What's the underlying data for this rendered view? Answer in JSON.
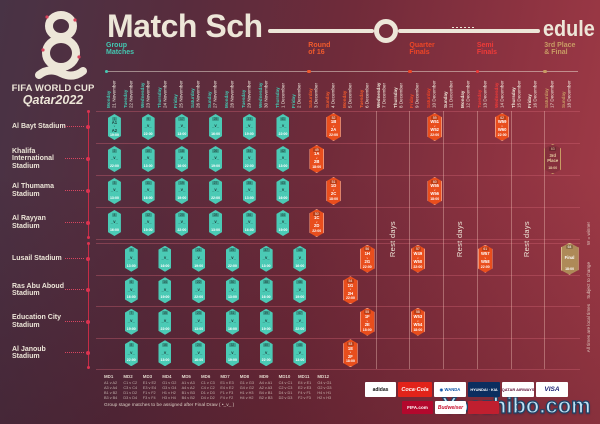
{
  "title": {
    "part1": "Match Sch",
    "part2": "edule"
  },
  "logo": {
    "line1": "FIFA WORLD CUP",
    "line2": "Qatar2022"
  },
  "vs_glyph": "v",
  "colors": {
    "cream": "#EDE6D8",
    "group": "#43C8B2",
    "r16": "#F15A2C",
    "qf": "#EE4526",
    "sf": "#EF3B38",
    "final": "#C89C64",
    "rest": "#EFE8DA",
    "red_accent": "#DC3350",
    "marker_group": "#4BCAB5",
    "marker_knockout": "#E94E1D",
    "marker_gold": "#AE8A58"
  },
  "sections": [
    {
      "id": "group",
      "lines": [
        "Group",
        "Matches"
      ],
      "startCol": 0,
      "endCol": 11,
      "color": "group"
    },
    {
      "id": "r16",
      "lines": [
        "Round",
        "of 16"
      ],
      "startCol": 12,
      "endCol": 15,
      "color": "r16"
    },
    {
      "id": "qf",
      "lines": [
        "Quarter",
        "Finals"
      ],
      "startCol": 18,
      "endCol": 19,
      "color": "qf"
    },
    {
      "id": "sf",
      "lines": [
        "Semi",
        "Finals"
      ],
      "startCol": 22,
      "endCol": 23,
      "color": "sf"
    },
    {
      "id": "final",
      "lines": [
        "3rd Place",
        "& Final"
      ],
      "startCol": 26,
      "endCol": 27,
      "color": "final"
    }
  ],
  "columns": [
    {
      "day": "Monday",
      "date": "21 November",
      "stage": "group"
    },
    {
      "day": "Tuesday",
      "date": "22 November",
      "stage": "group"
    },
    {
      "day": "Wednesday",
      "date": "23 November",
      "stage": "group"
    },
    {
      "day": "Thursday",
      "date": "24 November",
      "stage": "group"
    },
    {
      "day": "Friday",
      "date": "25 November",
      "stage": "group"
    },
    {
      "day": "Saturday",
      "date": "26 November",
      "stage": "group"
    },
    {
      "day": "Sunday",
      "date": "27 November",
      "stage": "group"
    },
    {
      "day": "Monday",
      "date": "28 November",
      "stage": "group"
    },
    {
      "day": "Tuesday",
      "date": "29 November",
      "stage": "group"
    },
    {
      "day": "Wednesday",
      "date": "30 November",
      "stage": "group"
    },
    {
      "day": "Thursday",
      "date": "1 December",
      "stage": "group"
    },
    {
      "day": "Friday",
      "date": "2 December",
      "stage": "group"
    },
    {
      "day": "Saturday",
      "date": "3 December",
      "stage": "r16"
    },
    {
      "day": "Sunday",
      "date": "4 December",
      "stage": "r16"
    },
    {
      "day": "Monday",
      "date": "5 December",
      "stage": "r16"
    },
    {
      "day": "Tuesday",
      "date": "6 December",
      "stage": "r16"
    },
    {
      "day": "Wednesday",
      "date": "7 December",
      "stage": "rest"
    },
    {
      "day": "Thursday",
      "date": "8 December",
      "stage": "rest"
    },
    {
      "day": "Friday",
      "date": "9 December",
      "stage": "qf"
    },
    {
      "day": "Saturday",
      "date": "10 December",
      "stage": "qf"
    },
    {
      "day": "Sunday",
      "date": "11 December",
      "stage": "rest"
    },
    {
      "day": "Monday",
      "date": "12 December",
      "stage": "rest"
    },
    {
      "day": "Tuesday",
      "date": "13 December",
      "stage": "sf"
    },
    {
      "day": "Wednesday",
      "date": "14 December",
      "stage": "sf"
    },
    {
      "day": "Thursday",
      "date": "15 December",
      "stage": "rest"
    },
    {
      "day": "Friday",
      "date": "16 December",
      "stage": "rest"
    },
    {
      "day": "Saturday",
      "date": "17 December",
      "stage": "final"
    },
    {
      "day": "Sunday",
      "date": "18 December",
      "stage": "final"
    }
  ],
  "stadiums": [
    "Al Bayt Stadium",
    "Khalifa International Stadium",
    "Al Thumama Stadium",
    "Al Rayyan Stadium",
    "Lusail Stadium",
    "Ras Abu Aboud Stadium",
    "Education City Stadium",
    "Al Janoub Stadium"
  ],
  "rest_zones": [
    {
      "label": "Rest days",
      "startCol": 16,
      "endCol": 17
    },
    {
      "label": "Rest days",
      "startCol": 20,
      "endCol": 21
    },
    {
      "label": "Rest days",
      "startCol": 24,
      "endCol": 25
    }
  ],
  "matches": [
    {
      "row": 0,
      "col": 0,
      "num": "1",
      "lines": [
        "A1",
        "A2"
      ],
      "vs": true,
      "time": "19:00",
      "type": "group"
    },
    {
      "row": 1,
      "col": 0,
      "num": "2",
      "lines": [
        "_v_"
      ],
      "vs": false,
      "time": "22:00",
      "type": "group"
    },
    {
      "row": 2,
      "col": 0,
      "num": "3",
      "lines": [
        "_v_"
      ],
      "vs": false,
      "time": "13:00",
      "type": "group"
    },
    {
      "row": 3,
      "col": 0,
      "num": "4",
      "lines": [
        "_v_"
      ],
      "vs": false,
      "time": "16:00",
      "type": "group"
    },
    {
      "row": 0,
      "col": 2,
      "num": "9",
      "lines": [
        "_v_"
      ],
      "vs": false,
      "time": "22:00",
      "type": "group"
    },
    {
      "row": 1,
      "col": 2,
      "num": "10",
      "lines": [
        "_v_"
      ],
      "vs": false,
      "time": "13:00",
      "type": "group"
    },
    {
      "row": 2,
      "col": 2,
      "num": "11",
      "lines": [
        "_v_"
      ],
      "vs": false,
      "time": "16:00",
      "type": "group"
    },
    {
      "row": 3,
      "col": 2,
      "num": "12",
      "lines": [
        "_v_"
      ],
      "vs": false,
      "time": "19:00",
      "type": "group"
    },
    {
      "row": 0,
      "col": 4,
      "num": "17",
      "lines": [
        "_v_"
      ],
      "vs": false,
      "time": "13:00",
      "type": "group"
    },
    {
      "row": 1,
      "col": 4,
      "num": "18",
      "lines": [
        "_v_"
      ],
      "vs": false,
      "time": "16:00",
      "type": "group"
    },
    {
      "row": 2,
      "col": 4,
      "num": "19",
      "lines": [
        "_v_"
      ],
      "vs": false,
      "time": "19:00",
      "type": "group"
    },
    {
      "row": 3,
      "col": 4,
      "num": "20",
      "lines": [
        "_v_"
      ],
      "vs": false,
      "time": "22:00",
      "type": "group"
    },
    {
      "row": 0,
      "col": 6,
      "num": "25",
      "lines": [
        "_v_"
      ],
      "vs": false,
      "time": "16:00",
      "type": "group"
    },
    {
      "row": 1,
      "col": 6,
      "num": "26",
      "lines": [
        "_v_"
      ],
      "vs": false,
      "time": "19:00",
      "type": "group"
    },
    {
      "row": 2,
      "col": 6,
      "num": "27",
      "lines": [
        "_v_"
      ],
      "vs": false,
      "time": "22:00",
      "type": "group"
    },
    {
      "row": 3,
      "col": 6,
      "num": "28",
      "lines": [
        "_v_"
      ],
      "vs": false,
      "time": "13:00",
      "type": "group"
    },
    {
      "row": 0,
      "col": 8,
      "num": "33",
      "lines": [
        "_v_"
      ],
      "vs": false,
      "time": "19:00",
      "type": "group"
    },
    {
      "row": 1,
      "col": 8,
      "num": "34",
      "lines": [
        "_v_"
      ],
      "vs": false,
      "time": "22:00",
      "type": "group"
    },
    {
      "row": 2,
      "col": 8,
      "num": "35",
      "lines": [
        "_v_"
      ],
      "vs": false,
      "time": "13:00",
      "type": "group"
    },
    {
      "row": 3,
      "col": 8,
      "num": "36",
      "lines": [
        "_v_"
      ],
      "vs": false,
      "time": "16:00",
      "type": "group"
    },
    {
      "row": 0,
      "col": 10,
      "num": "41",
      "lines": [
        "_v_"
      ],
      "vs": false,
      "time": "22:00",
      "type": "group"
    },
    {
      "row": 1,
      "col": 10,
      "num": "42",
      "lines": [
        "_v_"
      ],
      "vs": false,
      "time": "13:00",
      "type": "group"
    },
    {
      "row": 2,
      "col": 10,
      "num": "43",
      "lines": [
        "_v_"
      ],
      "vs": false,
      "time": "16:00",
      "type": "group"
    },
    {
      "row": 3,
      "col": 10,
      "num": "44",
      "lines": [
        "_v_"
      ],
      "vs": false,
      "time": "19:00",
      "type": "group"
    },
    {
      "row": 4,
      "col": 1,
      "num": "5",
      "lines": [
        "_v_"
      ],
      "vs": false,
      "time": "13:00",
      "type": "group"
    },
    {
      "row": 5,
      "col": 1,
      "num": "6",
      "lines": [
        "_v_"
      ],
      "vs": false,
      "time": "16:00",
      "type": "group"
    },
    {
      "row": 6,
      "col": 1,
      "num": "7",
      "lines": [
        "_v_"
      ],
      "vs": false,
      "time": "19:00",
      "type": "group"
    },
    {
      "row": 7,
      "col": 1,
      "num": "8",
      "lines": [
        "_v_"
      ],
      "vs": false,
      "time": "22:00",
      "type": "group"
    },
    {
      "row": 4,
      "col": 3,
      "num": "13",
      "lines": [
        "_v_"
      ],
      "vs": false,
      "time": "16:00",
      "type": "group"
    },
    {
      "row": 5,
      "col": 3,
      "num": "14",
      "lines": [
        "_v_"
      ],
      "vs": false,
      "time": "19:00",
      "type": "group"
    },
    {
      "row": 6,
      "col": 3,
      "num": "15",
      "lines": [
        "_v_"
      ],
      "vs": false,
      "time": "22:00",
      "type": "group"
    },
    {
      "row": 7,
      "col": 3,
      "num": "16",
      "lines": [
        "_v_"
      ],
      "vs": false,
      "time": "13:00",
      "type": "group"
    },
    {
      "row": 4,
      "col": 5,
      "num": "21",
      "lines": [
        "_v_"
      ],
      "vs": false,
      "time": "19:00",
      "type": "group"
    },
    {
      "row": 5,
      "col": 5,
      "num": "22",
      "lines": [
        "_v_"
      ],
      "vs": false,
      "time": "22:00",
      "type": "group"
    },
    {
      "row": 6,
      "col": 5,
      "num": "23",
      "lines": [
        "_v_"
      ],
      "vs": false,
      "time": "13:00",
      "type": "group"
    },
    {
      "row": 7,
      "col": 5,
      "num": "24",
      "lines": [
        "_v_"
      ],
      "vs": false,
      "time": "16:00",
      "type": "group"
    },
    {
      "row": 4,
      "col": 7,
      "num": "29",
      "lines": [
        "_v_"
      ],
      "vs": false,
      "time": "22:00",
      "type": "group"
    },
    {
      "row": 5,
      "col": 7,
      "num": "30",
      "lines": [
        "_v_"
      ],
      "vs": false,
      "time": "13:00",
      "type": "group"
    },
    {
      "row": 6,
      "col": 7,
      "num": "31",
      "lines": [
        "_v_"
      ],
      "vs": false,
      "time": "16:00",
      "type": "group"
    },
    {
      "row": 7,
      "col": 7,
      "num": "32",
      "lines": [
        "_v_"
      ],
      "vs": false,
      "time": "19:00",
      "type": "group"
    },
    {
      "row": 4,
      "col": 9,
      "num": "37",
      "lines": [
        "_v_"
      ],
      "vs": false,
      "time": "13:00",
      "type": "group"
    },
    {
      "row": 5,
      "col": 9,
      "num": "38",
      "lines": [
        "_v_"
      ],
      "vs": false,
      "time": "16:00",
      "type": "group"
    },
    {
      "row": 6,
      "col": 9,
      "num": "39",
      "lines": [
        "_v_"
      ],
      "vs": false,
      "time": "19:00",
      "type": "group"
    },
    {
      "row": 7,
      "col": 9,
      "num": "40",
      "lines": [
        "_v_"
      ],
      "vs": false,
      "time": "22:00",
      "type": "group"
    },
    {
      "row": 4,
      "col": 11,
      "num": "45",
      "lines": [
        "_v_"
      ],
      "vs": false,
      "time": "16:00",
      "type": "group"
    },
    {
      "row": 5,
      "col": 11,
      "num": "46",
      "lines": [
        "_v_"
      ],
      "vs": false,
      "time": "19:00",
      "type": "group"
    },
    {
      "row": 6,
      "col": 11,
      "num": "47",
      "lines": [
        "_v_"
      ],
      "vs": false,
      "time": "22:00",
      "type": "group"
    },
    {
      "row": 7,
      "col": 11,
      "num": "48",
      "lines": [
        "_v_"
      ],
      "vs": false,
      "time": "13:00",
      "type": "group"
    },
    {
      "row": 1,
      "col": 12,
      "num": "49",
      "lines": [
        "1A",
        "2B"
      ],
      "vs": true,
      "time": "18:00",
      "type": "r16"
    },
    {
      "row": 3,
      "col": 12,
      "num": "50",
      "lines": [
        "1C",
        "2D"
      ],
      "vs": true,
      "time": "22:00",
      "type": "r16"
    },
    {
      "row": 2,
      "col": 13,
      "num": "51",
      "lines": [
        "1D",
        "2C"
      ],
      "vs": true,
      "time": "18:00",
      "type": "r16"
    },
    {
      "row": 0,
      "col": 13,
      "num": "52",
      "lines": [
        "1B",
        "2A"
      ],
      "vs": true,
      "time": "22:00",
      "type": "r16"
    },
    {
      "row": 7,
      "col": 14,
      "num": "53",
      "lines": [
        "1E",
        "2F"
      ],
      "vs": true,
      "time": "18:00",
      "type": "r16"
    },
    {
      "row": 5,
      "col": 14,
      "num": "54",
      "lines": [
        "1G",
        "2H"
      ],
      "vs": true,
      "time": "22:00",
      "type": "r16"
    },
    {
      "row": 6,
      "col": 15,
      "num": "55",
      "lines": [
        "1F",
        "2E"
      ],
      "vs": true,
      "time": "18:00",
      "type": "r16"
    },
    {
      "row": 4,
      "col": 15,
      "num": "56",
      "lines": [
        "1H",
        "2G"
      ],
      "vs": true,
      "time": "22:00",
      "type": "r16"
    },
    {
      "row": 4,
      "col": 18,
      "num": "57",
      "lines": [
        "W49",
        "W50"
      ],
      "vs": true,
      "time": "22:00",
      "type": "qf"
    },
    {
      "row": 6,
      "col": 18,
      "num": "58",
      "lines": [
        "W53",
        "W54"
      ],
      "vs": true,
      "time": "18:00",
      "type": "qf"
    },
    {
      "row": 0,
      "col": 19,
      "num": "59",
      "lines": [
        "W51",
        "W52"
      ],
      "vs": true,
      "time": "22:00",
      "type": "qf"
    },
    {
      "row": 2,
      "col": 19,
      "num": "60",
      "lines": [
        "W55",
        "W56"
      ],
      "vs": true,
      "time": "18:00",
      "type": "qf"
    },
    {
      "row": 4,
      "col": 22,
      "num": "61",
      "lines": [
        "W57",
        "W58"
      ],
      "vs": true,
      "time": "22:00",
      "type": "sf"
    },
    {
      "row": 0,
      "col": 23,
      "num": "62",
      "lines": [
        "W59",
        "W60"
      ],
      "vs": true,
      "time": "22:00",
      "type": "sf"
    },
    {
      "row": 1,
      "col": 26,
      "num": "63",
      "lines": [
        "3rd",
        "Place"
      ],
      "vs": false,
      "time": "18:00",
      "type": "third"
    },
    {
      "row": 4,
      "col": 27,
      "num": "64",
      "lines": [
        "Final"
      ],
      "vs": false,
      "time": "18:00",
      "type": "final"
    }
  ],
  "side_notes": [
    "W = winner",
    "Subject to change",
    "All times are local times"
  ],
  "legend": {
    "headers": [
      "MD1",
      "MD2",
      "MD3",
      "MD4",
      "MD5",
      "MD6",
      "MD7",
      "MD8",
      "MD9",
      "MD10",
      "MD11",
      "MD12"
    ],
    "fixtures": [
      [
        "A1 v A2",
        "A3 v A4",
        "B1 v B2",
        "B3 v B4"
      ],
      [
        "C1 v C2",
        "C3 v C4",
        "D1 v D2",
        "D3 v D4"
      ],
      [
        "E1 v E2",
        "E3 v E4",
        "F1 v F2",
        "F3 v F4"
      ],
      [
        "G1 v G2",
        "G3 v G4",
        "H1 v H2",
        "H3 v H4"
      ],
      [
        "A1 v A3",
        "A4 v A2",
        "B1 v B3",
        "B4 v B2"
      ],
      [
        "C1 v C3",
        "C4 v C2",
        "D1 v D3",
        "D4 v D2"
      ],
      [
        "E1 v E3",
        "E4 v E2",
        "F1 v F3",
        "F4 v F2"
      ],
      [
        "G1 v G3",
        "G4 v G2",
        "H1 v H3",
        "H4 v H2"
      ],
      [
        "A4 v A1",
        "A2 v A3",
        "B4 v B1",
        "B2 v B3"
      ],
      [
        "C4 v C1",
        "C2 v C3",
        "D4 v D1",
        "D2 v D3"
      ],
      [
        "E4 v E1",
        "E2 v E3",
        "F4 v F1",
        "F2 v F3"
      ],
      [
        "G4 v G1",
        "G2 v G3",
        "H4 v H1",
        "H2 v H3"
      ]
    ],
    "footnote": "Group stage matches to be assigned after Final Draw ( •_v_ )"
  },
  "sponsors": {
    "row1": [
      {
        "name": "adidas",
        "text": "adidas",
        "bg": "#FFFFFF",
        "fg": "#111111",
        "italic": false
      },
      {
        "name": "coca-cola",
        "text": "Coca·Cola",
        "bg": "#E2231A",
        "fg": "#FFFFFF",
        "italic": true
      },
      {
        "name": "wanda",
        "text": "◉ WANDA",
        "bg": "#FFFFFF",
        "fg": "#0B53A7",
        "italic": false
      },
      {
        "name": "hyundai-kia",
        "text": "HYUNDAI · KIA",
        "bg": "#0B2E5F",
        "fg": "#FFFFFF",
        "italic": false
      },
      {
        "name": "qatar-airways",
        "text": "QATAR AIRWAYS",
        "bg": "#FFFFFF",
        "fg": "#5C0D34",
        "italic": false
      },
      {
        "name": "visa",
        "text": "VISA",
        "bg": "#FFFFFF",
        "fg": "#1A1F71",
        "italic": true
      }
    ],
    "row2": [
      {
        "name": "fifa-com",
        "text": "FIFA.com",
        "bg": "#B3082D",
        "fg": "#FFFFFF",
        "italic": false
      },
      {
        "name": "budweiser",
        "text": "Budweiser",
        "bg": "#FFFFFF",
        "fg": "#C8102E",
        "italic": true
      },
      {
        "name": "sponsor-red",
        "text": "",
        "bg": "#C01F2F",
        "fg": "#FFFFFF",
        "italic": false
      }
    ]
  },
  "watermark": "Yoozhibo.com"
}
